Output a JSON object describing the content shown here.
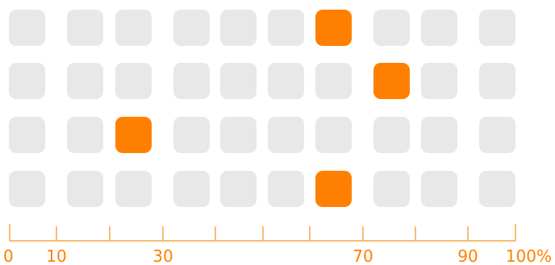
{
  "chart_data": {
    "type": "heatmap",
    "title": "",
    "xlabel": "",
    "ylabel": "",
    "x_scale": "nonlinear",
    "x_range": [
      0,
      100
    ],
    "x_unit": "%",
    "columns": [
      0,
      10,
      20,
      30,
      40,
      50,
      60,
      70,
      80,
      90
    ],
    "rows": 4,
    "highlighted_cells": [
      {
        "row": 1,
        "column": 6
      },
      {
        "row": 2,
        "column": 7
      },
      {
        "row": 3,
        "column": 2
      },
      {
        "row": 4,
        "column": 6
      }
    ],
    "axis_ticks": [
      0,
      10,
      20,
      30,
      40,
      50,
      60,
      70,
      80,
      90,
      100
    ],
    "tick_labels": [
      {
        "value": 0,
        "text": "0"
      },
      {
        "value": 10,
        "text": "10"
      },
      {
        "value": 30,
        "text": "30"
      },
      {
        "value": 70,
        "text": "70"
      },
      {
        "value": 90,
        "text": "90"
      },
      {
        "value": 100,
        "text": "100%"
      }
    ],
    "colors": {
      "highlight": "#ff8000",
      "cell": "#e8e8e8",
      "axis": "#f7a545",
      "label": "#ff8000"
    }
  }
}
